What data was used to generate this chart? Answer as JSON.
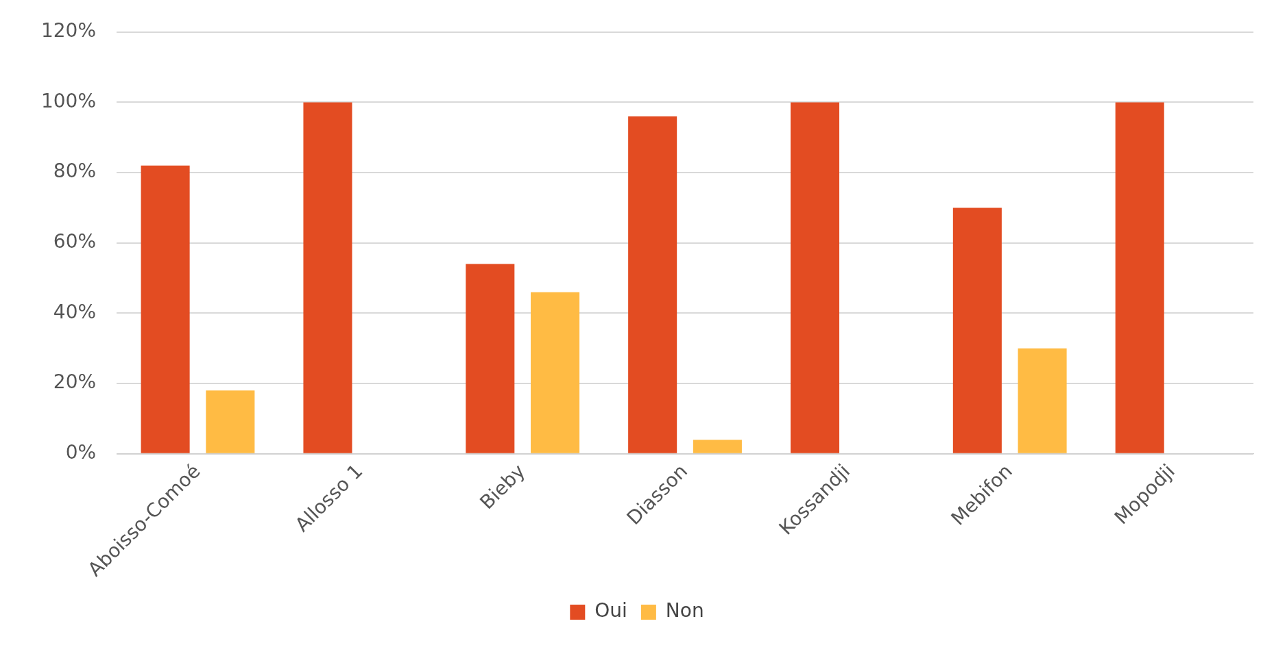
{
  "chart_data": {
    "type": "bar",
    "categories": [
      "Aboisso-Comoé",
      "Allosso 1",
      "Bieby",
      "Diasson",
      "Kossandji",
      "Mebifon",
      "Mopodji"
    ],
    "series": [
      {
        "name": "Oui",
        "color": "#e34c22",
        "values": [
          82,
          100,
          54,
          96,
          100,
          70,
          100
        ]
      },
      {
        "name": "Non",
        "color": "#ffbb44",
        "values": [
          18,
          0,
          46,
          4,
          0,
          30,
          0
        ]
      }
    ],
    "ylim": [
      0,
      120
    ],
    "yticks": [
      {
        "value": 0,
        "label": "0%"
      },
      {
        "value": 20,
        "label": "20%"
      },
      {
        "value": 40,
        "label": "40%"
      },
      {
        "value": 60,
        "label": "60%"
      },
      {
        "value": 80,
        "label": "80%"
      },
      {
        "value": 100,
        "label": "100%"
      },
      {
        "value": 120,
        "label": "120%"
      }
    ],
    "grid": "y",
    "legend": "bottom"
  }
}
